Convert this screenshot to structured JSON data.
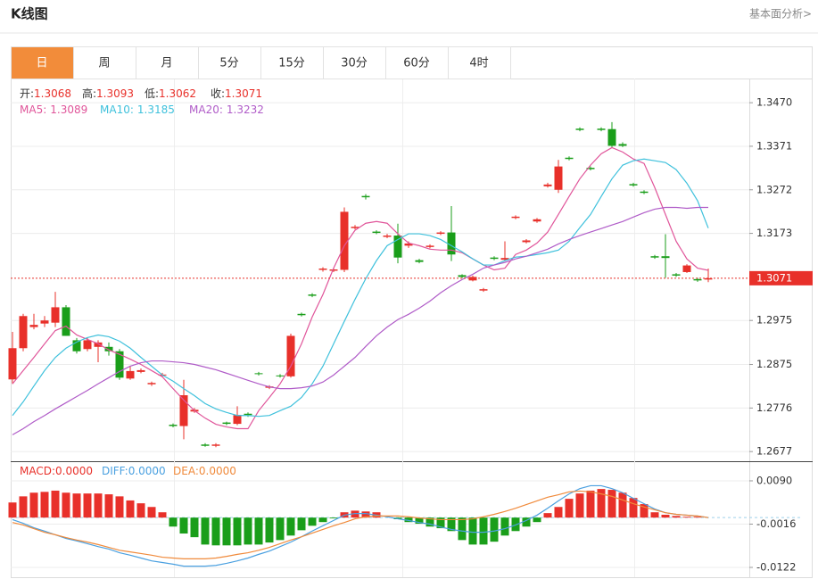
{
  "header": {
    "title": "K线图",
    "link": "基本面分析>"
  },
  "tabs": [
    "日",
    "周",
    "月",
    "5分",
    "15分",
    "30分",
    "60分",
    "4时"
  ],
  "active_tab": 0,
  "chart_data": [
    {
      "type": "candlestick",
      "up_color": "#e8302a",
      "down_color": "#1a9e1a",
      "ohlc_labels": [
        "开:",
        "高:",
        "低:",
        "收:"
      ],
      "open": [
        1.2841,
        1.2912,
        1.296,
        1.2968,
        1.297,
        1.3005,
        1.293,
        1.291,
        1.2915,
        1.2915,
        1.2905,
        1.2843,
        1.2858,
        1.283,
        1.285,
        1.2738,
        1.2735,
        1.2768,
        1.2693,
        1.269,
        1.2743,
        1.274,
        1.2763,
        1.2855,
        1.2822,
        1.285,
        1.2848,
        1.299,
        1.3034,
        1.309,
        1.3088,
        1.309,
        1.3185,
        1.3258,
        1.3177,
        1.3165,
        1.3168,
        1.3145,
        1.3112,
        1.3142,
        1.3172,
        1.3175,
        1.3078,
        1.3066,
        1.3043,
        1.3118,
        1.3113,
        1.3208,
        1.3153,
        1.32,
        1.328,
        1.3272,
        1.3345,
        1.3411,
        1.3322,
        1.3411,
        1.341,
        1.3376,
        1.3285,
        1.3268,
        1.3121,
        1.3121,
        1.308,
        1.3085,
        1.3069,
        1.3068
      ],
      "high": [
        1.2949,
        1.299,
        1.299,
        1.2985,
        1.304,
        1.301,
        1.2935,
        1.2935,
        1.293,
        1.2925,
        1.291,
        1.287,
        1.2866,
        1.2836,
        1.2856,
        1.2741,
        1.284,
        1.2776,
        1.2696,
        1.2696,
        1.2745,
        1.278,
        1.2766,
        1.2858,
        1.2828,
        1.2853,
        1.2945,
        1.2993,
        1.3037,
        1.3096,
        1.3094,
        1.3232,
        1.3192,
        1.3262,
        1.318,
        1.3172,
        1.3195,
        1.3155,
        1.3115,
        1.3148,
        1.3178,
        1.3235,
        1.308,
        1.3077,
        1.3049,
        1.3121,
        1.3155,
        1.3214,
        1.316,
        1.3208,
        1.3288,
        1.334,
        1.3348,
        1.3414,
        1.3325,
        1.3414,
        1.3426,
        1.338,
        1.3288,
        1.3271,
        1.3124,
        1.3171,
        1.3083,
        1.3103,
        1.3072,
        1.3093
      ],
      "low": [
        1.2831,
        1.2905,
        1.2955,
        1.296,
        1.296,
        1.294,
        1.29,
        1.2905,
        1.288,
        1.2895,
        1.284,
        1.284,
        1.2855,
        1.2826,
        1.2847,
        1.2732,
        1.2705,
        1.2765,
        1.2688,
        1.2687,
        1.2737,
        1.2737,
        1.2756,
        1.285,
        1.2819,
        1.2845,
        1.2845,
        1.2984,
        1.3028,
        1.3086,
        1.3085,
        1.3085,
        1.3182,
        1.325,
        1.3171,
        1.3162,
        1.3105,
        1.314,
        1.3105,
        1.3139,
        1.3169,
        1.311,
        1.3071,
        1.3064,
        1.304,
        1.3112,
        1.311,
        1.3205,
        1.315,
        1.3197,
        1.3277,
        1.3265,
        1.3339,
        1.3405,
        1.3316,
        1.3405,
        1.3368,
        1.3369,
        1.3279,
        1.3262,
        1.3115,
        1.3072,
        1.3074,
        1.3083,
        1.3063,
        1.3062
      ],
      "close": [
        1.2912,
        1.2985,
        1.2965,
        1.2975,
        1.3005,
        1.294,
        1.2905,
        1.293,
        1.2925,
        1.2905,
        1.2845,
        1.286,
        1.2862,
        1.2833,
        1.2852,
        1.2735,
        1.2805,
        1.2772,
        1.269,
        1.2693,
        1.274,
        1.276,
        1.276,
        1.2853,
        1.2825,
        1.2848,
        1.294,
        1.2987,
        1.3031,
        1.3093,
        1.3091,
        1.3222,
        1.3188,
        1.3255,
        1.3174,
        1.3168,
        1.3118,
        1.315,
        1.3108,
        1.3145,
        1.3175,
        1.3125,
        1.3074,
        1.3074,
        1.3046,
        1.3115,
        1.3117,
        1.3211,
        1.3157,
        1.3205,
        1.3284,
        1.3325,
        1.3342,
        1.3408,
        1.3319,
        1.3408,
        1.3372,
        1.3372,
        1.3282,
        1.3265,
        1.3118,
        1.3117,
        1.3077,
        1.31,
        1.3066,
        1.3071
      ],
      "series": [
        {
          "name": "MA5:",
          "color": "#e0559a",
          "values": [
            1.2831,
            1.2861,
            1.2891,
            1.2922,
            1.2952,
            1.2962,
            1.2942,
            1.2932,
            1.2922,
            1.2908,
            1.2898,
            1.2887,
            1.2875,
            1.2861,
            1.2847,
            1.282,
            1.2794,
            1.277,
            1.2753,
            1.2739,
            1.2733,
            1.2729,
            1.2729,
            1.277,
            1.28,
            1.2831,
            1.2871,
            1.2922,
            1.2983,
            1.3034,
            1.3094,
            1.3145,
            1.318,
            1.3196,
            1.32,
            1.3196,
            1.3172,
            1.3151,
            1.3145,
            1.3137,
            1.3135,
            1.3135,
            1.3129,
            1.3115,
            1.3101,
            1.309,
            1.3094,
            1.3125,
            1.3135,
            1.3151,
            1.3176,
            1.3216,
            1.3257,
            1.3297,
            1.3328,
            1.3354,
            1.3368,
            1.3358,
            1.3342,
            1.3332,
            1.3277,
            1.3216,
            1.3155,
            1.3115,
            1.3094,
            1.3089
          ]
        },
        {
          "name": "MA10:",
          "color": "#3fc1dc",
          "values": [
            1.2759,
            1.279,
            1.2826,
            1.2861,
            1.2891,
            1.2912,
            1.2926,
            1.2936,
            1.2942,
            1.2938,
            1.2928,
            1.2912,
            1.2891,
            1.2871,
            1.2851,
            1.2837,
            1.282,
            1.2804,
            1.2786,
            1.2774,
            1.2766,
            1.2759,
            1.2759,
            1.2757,
            1.2759,
            1.277,
            1.278,
            1.28,
            1.2831,
            1.2871,
            1.2922,
            1.2973,
            1.3023,
            1.307,
            1.3111,
            1.3145,
            1.3159,
            1.3172,
            1.3172,
            1.3168,
            1.3159,
            1.3145,
            1.3131,
            1.3115,
            1.3101,
            1.3101,
            1.3111,
            1.3119,
            1.3121,
            1.3125,
            1.3129,
            1.3135,
            1.3155,
            1.3186,
            1.3216,
            1.3257,
            1.3297,
            1.3328,
            1.3338,
            1.3342,
            1.3338,
            1.3334,
            1.3318,
            1.3287,
            1.3247,
            1.3185
          ]
        },
        {
          "name": "MA20:",
          "color": "#b05cc8",
          "values": [
            1.2715,
            1.2729,
            1.2745,
            1.2759,
            1.2774,
            1.2788,
            1.2802,
            1.2816,
            1.2831,
            1.2845,
            1.2859,
            1.2871,
            1.2879,
            1.2883,
            1.2883,
            1.2881,
            1.2879,
            1.2875,
            1.2869,
            1.2863,
            1.2855,
            1.2847,
            1.2839,
            1.2831,
            1.2824,
            1.282,
            1.282,
            1.2822,
            1.2826,
            1.2835,
            1.2851,
            1.2871,
            1.2891,
            1.2916,
            1.294,
            1.296,
            1.2977,
            1.2989,
            1.3003,
            1.3019,
            1.3038,
            1.3054,
            1.3068,
            1.308,
            1.3094,
            1.3101,
            1.3107,
            1.3115,
            1.3121,
            1.3129,
            1.3137,
            1.3149,
            1.3159,
            1.3168,
            1.3176,
            1.3184,
            1.3192,
            1.32,
            1.321,
            1.322,
            1.3228,
            1.3232,
            1.3232,
            1.323,
            1.3232,
            1.3232
          ]
        }
      ],
      "ylim": [
        1.2655,
        1.3525
      ],
      "yticks": [
        {
          "value": 1.347,
          "label": "1.3470"
        },
        1.3371,
        1.3272,
        1.3173,
        1.2975,
        1.2875,
        1.2776,
        1.2677
      ],
      "grid": true
    },
    {
      "type": "macd",
      "up_color": "#e8302a",
      "down_color": "#1a9e1a",
      "histogram": {
        "name": "MACD:",
        "legend_value": {
          "value": 0,
          "label": "0.0000"
        },
        "values": [
          0.0037,
          0.0052,
          0.0061,
          0.0063,
          0.0066,
          0.0061,
          0.0059,
          0.0059,
          0.0059,
          0.0057,
          0.0052,
          0.0042,
          0.0035,
          0.0026,
          0.0013,
          -0.0022,
          -0.0039,
          -0.0048,
          -0.0066,
          -0.0068,
          -0.0068,
          -0.0068,
          -0.0066,
          -0.0066,
          -0.0061,
          -0.0055,
          -0.0044,
          -0.0031,
          -0.002,
          -0.0011,
          -0.0002,
          0.0013,
          0.0017,
          0.0015,
          0.0013,
          0,
          -0.0004,
          -0.0011,
          -0.0015,
          -0.0022,
          -0.0026,
          -0.0033,
          -0.0055,
          -0.0066,
          -0.0066,
          -0.0059,
          -0.0044,
          -0.0033,
          -0.0022,
          -0.0011,
          0.0011,
          0.0026,
          0.0046,
          0.0059,
          0.0066,
          0.007,
          0.0068,
          0.0061,
          0.0048,
          0.0033,
          0.0013,
          0.0007,
          0.0004,
          0.0002,
          0.0002,
          0
        ]
      },
      "series": [
        {
          "name": "DIFF:",
          "color": "#4aa0e0",
          "legend_value": {
            "value": 0,
            "label": "0.0000"
          },
          "values": [
            -0.0005,
            -0.0014,
            -0.0025,
            -0.0033,
            -0.0042,
            -0.0051,
            -0.0057,
            -0.0064,
            -0.0071,
            -0.0077,
            -0.0086,
            -0.0092,
            -0.0099,
            -0.0106,
            -0.011,
            -0.0114,
            -0.0119,
            -0.0119,
            -0.0119,
            -0.0117,
            -0.0112,
            -0.0106,
            -0.0099,
            -0.009,
            -0.0082,
            -0.0071,
            -0.006,
            -0.0047,
            -0.0033,
            -0.002,
            -0.0007,
            0.0006,
            0.001,
            0.001,
            0.0006,
            0.0002,
            -0.0003,
            -0.0007,
            -0.0012,
            -0.0016,
            -0.0023,
            -0.0029,
            -0.0033,
            -0.0036,
            -0.0036,
            -0.0033,
            -0.0027,
            -0.0018,
            -0.0007,
            0.0006,
            0.0023,
            0.0041,
            0.0058,
            0.0071,
            0.0078,
            0.0078,
            0.0071,
            0.0061,
            0.0047,
            0.0034,
            0.0021,
            0.0012,
            0.0008,
            0.0006,
            0.0004,
            0
          ]
        },
        {
          "name": "DEA:",
          "color": "#f08a3b",
          "legend_value": {
            "value": 0,
            "label": "0.0000"
          },
          "values": [
            -0.0012,
            -0.0018,
            -0.0027,
            -0.0036,
            -0.0042,
            -0.0049,
            -0.0055,
            -0.006,
            -0.0066,
            -0.0073,
            -0.008,
            -0.0084,
            -0.0088,
            -0.0092,
            -0.0097,
            -0.0099,
            -0.0101,
            -0.0101,
            -0.0101,
            -0.0099,
            -0.0095,
            -0.009,
            -0.0086,
            -0.008,
            -0.0073,
            -0.0064,
            -0.0055,
            -0.0047,
            -0.0038,
            -0.0029,
            -0.002,
            -0.0012,
            -0.0003,
            0.0002,
            0.0004,
            0.0004,
            0.0004,
            0.0002,
            -0.0001,
            -0.0003,
            -0.0005,
            -0.0005,
            -0.0005,
            -0.0003,
            0.0002,
            0.0008,
            0.0015,
            0.0023,
            0.0032,
            0.0041,
            0.005,
            0.0056,
            0.0063,
            0.0065,
            0.0063,
            0.0058,
            0.0052,
            0.0043,
            0.0034,
            0.0026,
            0.0019,
            0.0012,
            0.0008,
            0.0006,
            0.0004,
            0
          ]
        }
      ],
      "ylim": [
        -0.0146,
        0.0138
      ],
      "yticks": [
        {
          "value": 0.009,
          "label": "0.0090"
        },
        -0.0016,
        -0.0122
      ],
      "grid": true
    }
  ]
}
